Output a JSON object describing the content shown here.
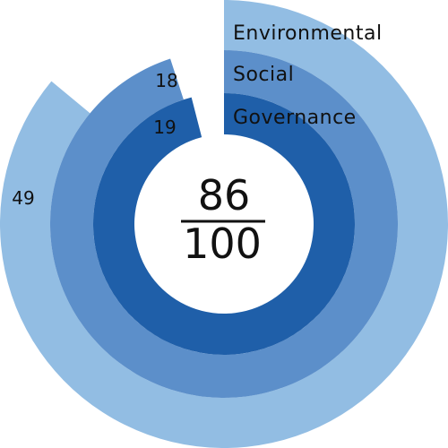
{
  "chart_data": {
    "type": "radial-bar",
    "title": "",
    "score": {
      "value": "86",
      "max": "100"
    },
    "series": [
      {
        "name": "Environmental",
        "label": "49",
        "fraction": 0.86,
        "color": "#92bde3"
      },
      {
        "name": "Social",
        "label": "18",
        "fraction": 0.95,
        "color": "#5c8fca"
      },
      {
        "name": "Governance",
        "label": "19",
        "fraction": 0.96,
        "color": "#1f5fa9"
      }
    ],
    "legend_position": "top-right"
  }
}
